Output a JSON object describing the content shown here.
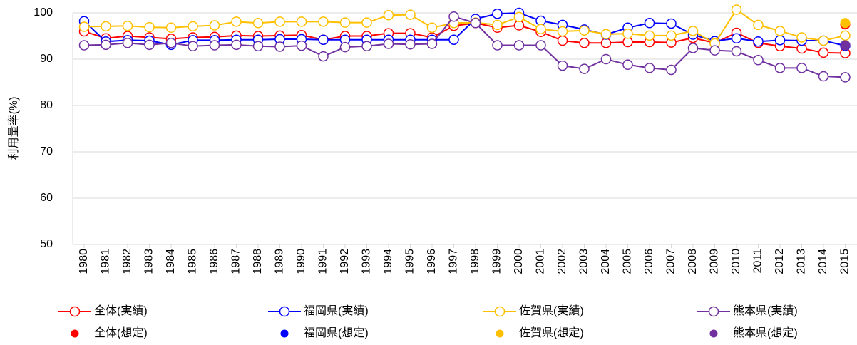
{
  "chart_data": {
    "type": "line",
    "y_label": "利用量率(%)",
    "categories": [
      "1980",
      "1981",
      "1982",
      "1983",
      "1984",
      "1985",
      "1986",
      "1987",
      "1988",
      "1989",
      "1990",
      "1991",
      "1992",
      "1993",
      "1994",
      "1995",
      "1996",
      "1997",
      "1998",
      "1999",
      "2000",
      "2001",
      "2002",
      "2003",
      "2004",
      "2005",
      "2006",
      "2007",
      "2008",
      "2009",
      "2010",
      "2011",
      "2012",
      "2013",
      "2014",
      "2015"
    ],
    "ylim": [
      50,
      100
    ],
    "yticks": [
      50,
      60,
      70,
      80,
      90,
      100
    ],
    "grid": true,
    "series": [
      {
        "name": "全体(実績)",
        "type": "line",
        "color": "#ff0000",
        "values": [
          96,
          94.5,
          95,
          94.7,
          94.4,
          94.7,
          94.8,
          95.1,
          95,
          95.1,
          95.2,
          94.2,
          95,
          95,
          95.6,
          95.6,
          94.7,
          97.2,
          97.8,
          96.8,
          97.3,
          95.9,
          94,
          93.5,
          93.5,
          93.7,
          93.7,
          93.6,
          94.6,
          93.5,
          95.7,
          93.5,
          92.8,
          92.3,
          91.4,
          91.3
        ]
      },
      {
        "name": "福岡県(実績)",
        "type": "line",
        "color": "#0000ff",
        "values": [
          98.2,
          93.8,
          94.1,
          94,
          93.1,
          94.1,
          94.1,
          94.2,
          94.2,
          94.3,
          94.3,
          94.2,
          94.2,
          94.2,
          94.2,
          94.2,
          94.2,
          94.2,
          98.7,
          99.8,
          100,
          98.3,
          97.4,
          96.4,
          95.3,
          96.8,
          97.8,
          97.7,
          95.3,
          93.9,
          94.5,
          93.8,
          94.1,
          94,
          94,
          92.9
        ]
      },
      {
        "name": "佐賀県(実績)",
        "type": "line",
        "color": "#ffc000",
        "values": [
          97,
          97.1,
          97.2,
          96.9,
          96.8,
          97.1,
          97.3,
          98.1,
          97.8,
          98.1,
          98.1,
          98.1,
          97.9,
          97.9,
          99.5,
          99.6,
          96.8,
          97.8,
          97.9,
          97.4,
          99.1,
          96.5,
          96,
          96.2,
          95.4,
          95.5,
          95.1,
          95.1,
          96.1,
          93.4,
          100.7,
          97.4,
          96.1,
          94.7,
          94,
          95.1
        ]
      },
      {
        "name": "熊本県(実績)",
        "type": "line",
        "color": "#7030a0",
        "values": [
          93,
          93.1,
          93.5,
          93.1,
          93.5,
          92.8,
          93,
          93.1,
          92.8,
          92.7,
          92.9,
          90.6,
          92.6,
          92.8,
          93.3,
          93.2,
          93.3,
          99.2,
          97.8,
          93,
          93,
          93,
          88.6,
          87.9,
          90,
          88.8,
          88.1,
          87.7,
          92.4,
          91.9,
          91.7,
          89.8,
          88.1,
          88.1,
          86.3,
          86.1
        ]
      },
      {
        "name": "全体(想定)",
        "type": "scatter",
        "color": "#ff0000",
        "values": [
          null,
          null,
          null,
          null,
          null,
          null,
          null,
          null,
          null,
          null,
          null,
          null,
          null,
          null,
          null,
          null,
          null,
          null,
          null,
          null,
          null,
          null,
          null,
          null,
          null,
          null,
          null,
          null,
          null,
          null,
          null,
          null,
          null,
          null,
          null,
          97.5
        ]
      },
      {
        "name": "福岡県(想定)",
        "type": "scatter",
        "color": "#0000ff",
        "values": [
          null,
          null,
          null,
          null,
          null,
          null,
          null,
          null,
          null,
          null,
          null,
          null,
          null,
          null,
          null,
          null,
          null,
          null,
          null,
          null,
          null,
          null,
          null,
          null,
          null,
          null,
          null,
          null,
          null,
          null,
          null,
          null,
          null,
          null,
          null,
          93
        ]
      },
      {
        "name": "佐賀県(想定)",
        "type": "scatter",
        "color": "#ffc000",
        "values": [
          null,
          null,
          null,
          null,
          null,
          null,
          null,
          null,
          null,
          null,
          null,
          null,
          null,
          null,
          null,
          null,
          null,
          null,
          null,
          null,
          null,
          null,
          null,
          null,
          null,
          null,
          null,
          null,
          null,
          null,
          null,
          null,
          null,
          null,
          null,
          97.8
        ]
      },
      {
        "name": "熊本県(想定)",
        "type": "scatter",
        "color": "#7030a0",
        "values": [
          null,
          null,
          null,
          null,
          null,
          null,
          null,
          null,
          null,
          null,
          null,
          null,
          null,
          null,
          null,
          null,
          null,
          null,
          null,
          null,
          null,
          null,
          null,
          null,
          null,
          null,
          null,
          null,
          null,
          null,
          null,
          null,
          null,
          null,
          null,
          93
        ]
      }
    ]
  }
}
